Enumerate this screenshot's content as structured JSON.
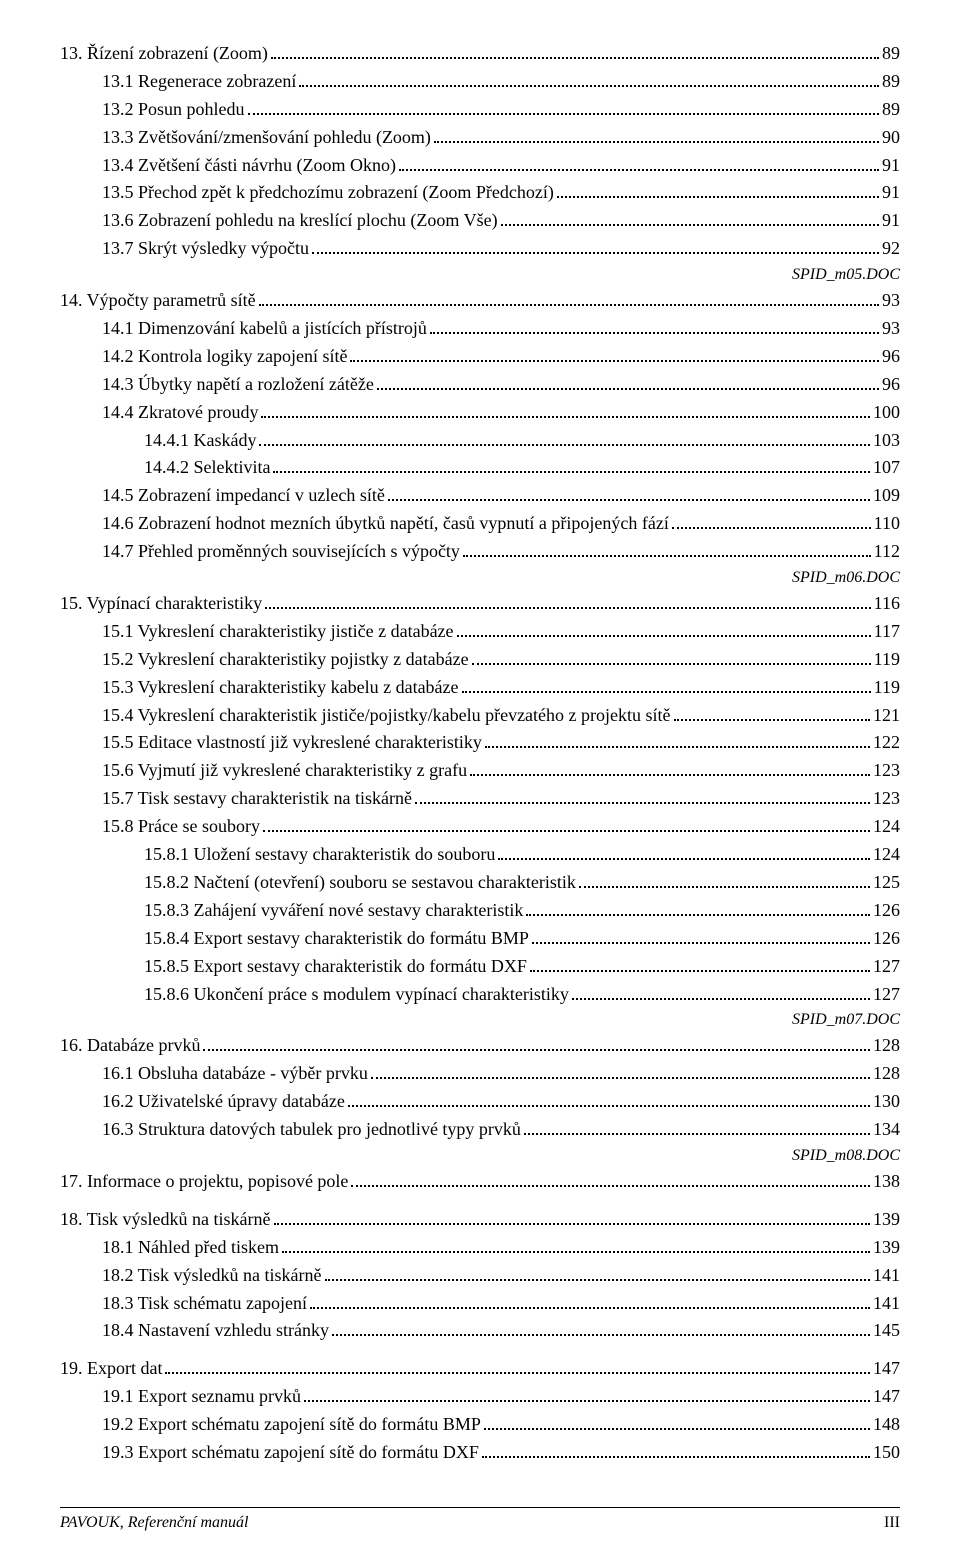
{
  "entries": [
    {
      "indent": 0,
      "label": "13. Řízení zobrazení (Zoom)",
      "page": "89",
      "gap": false
    },
    {
      "indent": 1,
      "label": "13.1 Regenerace zobrazení",
      "page": "89",
      "gap": false
    },
    {
      "indent": 1,
      "label": "13.2 Posun pohledu",
      "page": "89",
      "gap": false
    },
    {
      "indent": 1,
      "label": "13.3 Zvětšování/zmenšování pohledu (Zoom)",
      "page": "90",
      "gap": false
    },
    {
      "indent": 1,
      "label": "13.4 Zvětšení části návrhu (Zoom Okno)",
      "page": "91",
      "gap": false
    },
    {
      "indent": 1,
      "label": "13.5 Přechod zpět k předchozímu zobrazení (Zoom Předchozí)",
      "page": "91",
      "gap": false
    },
    {
      "indent": 1,
      "label": "13.6 Zobrazení pohledu na kreslící plochu (Zoom Vše)",
      "page": "91",
      "gap": false
    },
    {
      "indent": 1,
      "label": "13.7 Skrýt výsledky výpočtu",
      "page": "92",
      "gap": false
    },
    {
      "note": "SPID_m05.DOC"
    },
    {
      "indent": 0,
      "label": "14. Výpočty parametrů sítě",
      "page": "93",
      "gap": false
    },
    {
      "indent": 1,
      "label": "14.1 Dimenzování kabelů a jistících přístrojů",
      "page": "93",
      "gap": false
    },
    {
      "indent": 1,
      "label": "14.2 Kontrola logiky zapojení sítě",
      "page": "96",
      "gap": false
    },
    {
      "indent": 1,
      "label": "14.3 Úbytky napětí a rozložení zátěže",
      "page": "96",
      "gap": false
    },
    {
      "indent": 1,
      "label": "14.4 Zkratové proudy",
      "page": "100",
      "gap": false
    },
    {
      "indent": 2,
      "label": "14.4.1 Kaskády",
      "page": "103",
      "gap": false
    },
    {
      "indent": 2,
      "label": "14.4.2 Selektivita",
      "page": "107",
      "gap": false
    },
    {
      "indent": 1,
      "label": "14.5 Zobrazení impedancí v uzlech sítě",
      "page": "109",
      "gap": false
    },
    {
      "indent": 1,
      "label": "14.6 Zobrazení hodnot mezních úbytků napětí, časů vypnutí a připojených fází",
      "page": "110",
      "gap": false
    },
    {
      "indent": 1,
      "label": "14.7 Přehled proměnných souvisejících s výpočty",
      "page": "112",
      "gap": false
    },
    {
      "note": "SPID_m06.DOC"
    },
    {
      "indent": 0,
      "label": "15. Vypínací charakteristiky",
      "page": "116",
      "gap": false
    },
    {
      "indent": 1,
      "label": "15.1 Vykreslení charakteristiky jističe z databáze",
      "page": "117",
      "gap": false
    },
    {
      "indent": 1,
      "label": "15.2 Vykreslení charakteristiky pojistky z databáze",
      "page": "119",
      "gap": false
    },
    {
      "indent": 1,
      "label": "15.3 Vykreslení charakteristiky kabelu z databáze",
      "page": "119",
      "gap": false
    },
    {
      "indent": 1,
      "label": "15.4 Vykreslení charakteristik jističe/pojistky/kabelu převzatého z projektu sítě",
      "page": "121",
      "gap": false
    },
    {
      "indent": 1,
      "label": "15.5 Editace vlastností již vykreslené charakteristiky",
      "page": "122",
      "gap": false
    },
    {
      "indent": 1,
      "label": "15.6 Vyjmutí již vykreslené charakteristiky z grafu",
      "page": "123",
      "gap": false
    },
    {
      "indent": 1,
      "label": "15.7 Tisk sestavy charakteristik na tiskárně",
      "page": "123",
      "gap": false
    },
    {
      "indent": 1,
      "label": "15.8 Práce se soubory",
      "page": "124",
      "gap": false
    },
    {
      "indent": 2,
      "label": "15.8.1 Uložení sestavy charakteristik do souboru",
      "page": "124",
      "gap": false
    },
    {
      "indent": 2,
      "label": "15.8.2 Načtení (otevření) souboru se sestavou charakteristik",
      "page": "125",
      "gap": false
    },
    {
      "indent": 2,
      "label": "15.8.3 Zahájení vyváření nové sestavy charakteristik",
      "page": "126",
      "gap": false
    },
    {
      "indent": 2,
      "label": "15.8.4 Export sestavy charakteristik do formátu BMP",
      "page": "126",
      "gap": false
    },
    {
      "indent": 2,
      "label": "15.8.5 Export sestavy charakteristik do formátu DXF",
      "page": "127",
      "gap": false
    },
    {
      "indent": 2,
      "label": "15.8.6 Ukončení práce s modulem vypínací charakteristiky",
      "page": "127",
      "gap": false
    },
    {
      "note": "SPID_m07.DOC"
    },
    {
      "indent": 0,
      "label": "16. Databáze prvků",
      "page": "128",
      "gap": false
    },
    {
      "indent": 1,
      "label": "16.1 Obsluha databáze - výběr prvku",
      "page": "128",
      "gap": false
    },
    {
      "indent": 1,
      "label": "16.2 Uživatelské úpravy databáze",
      "page": "130",
      "gap": false
    },
    {
      "indent": 1,
      "label": "16.3 Struktura datových tabulek pro jednotlivé typy prvků",
      "page": "134",
      "gap": false
    },
    {
      "note": "SPID_m08.DOC"
    },
    {
      "indent": 0,
      "label": "17. Informace o projektu, popisové pole",
      "page": "138",
      "gap": false
    },
    {
      "indent": 0,
      "label": "18. Tisk výsledků na tiskárně",
      "page": "139",
      "gap": true
    },
    {
      "indent": 1,
      "label": "18.1 Náhled před tiskem",
      "page": "139",
      "gap": false
    },
    {
      "indent": 1,
      "label": "18.2 Tisk výsledků na tiskárně",
      "page": "141",
      "gap": false
    },
    {
      "indent": 1,
      "label": "18.3 Tisk schématu zapojení",
      "page": "141",
      "gap": false
    },
    {
      "indent": 1,
      "label": "18.4 Nastavení vzhledu stránky",
      "page": "145",
      "gap": false
    },
    {
      "indent": 0,
      "label": "19. Export dat",
      "page": "147",
      "gap": true
    },
    {
      "indent": 1,
      "label": "19.1 Export seznamu prvků",
      "page": "147",
      "gap": false
    },
    {
      "indent": 1,
      "label": "19.2 Export schématu zapojení sítě do formátu BMP",
      "page": "148",
      "gap": false
    },
    {
      "indent": 1,
      "label": "19.3 Export schématu zapojení sítě do formátu DXF",
      "page": "150",
      "gap": false
    }
  ],
  "footer": {
    "left": "PAVOUK, Referenční manuál",
    "right": "III"
  }
}
